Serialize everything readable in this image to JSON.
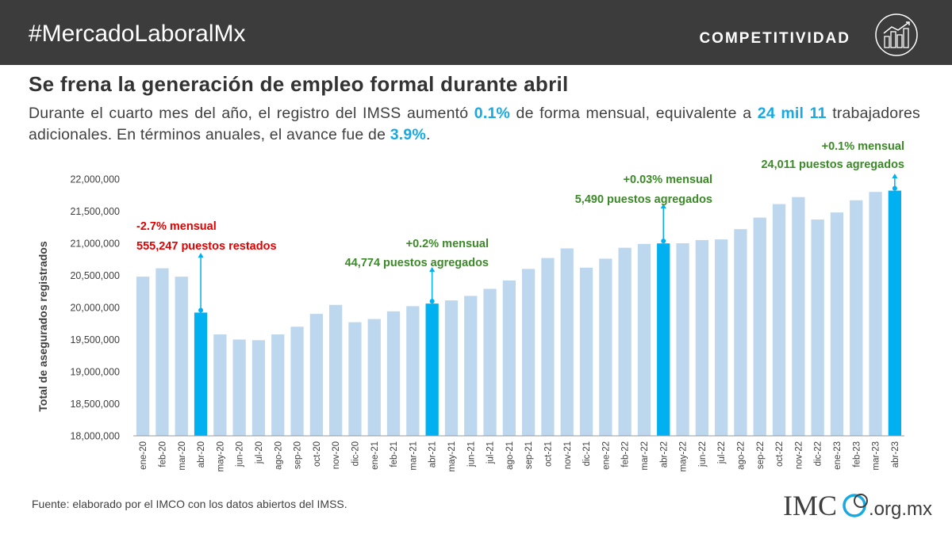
{
  "header": {
    "hashtag": "#MercadoLaboralMx",
    "brand": "COMPETITIVIDAD",
    "brand_icon": "city-chart-icon"
  },
  "title": "Se frena la generación de empleo formal durante abril",
  "subtitle": {
    "p1": "Durante el cuarto mes del año, el registro del IMSS aumentó ",
    "h1": "0.1%",
    "p2": " de forma mensual, equivalente a ",
    "h2": "24 mil 11",
    "p3": " trabajadores adicionales. En términos anuales, el avance fue de ",
    "h3": "3.9%",
    "p4": "."
  },
  "source": "Fuente: elaborado por el IMCO con los datos abiertos del IMSS.",
  "logo": {
    "imco": "IMC",
    "domain": ".org.mx"
  },
  "colors": {
    "bar": "#bdd7ee",
    "highlight": "#00b0f0",
    "red": "#e00000",
    "green": "#3b8a27",
    "header": "#3c3c3c"
  },
  "chart_data": {
    "type": "bar",
    "ylabel": "Total de asegurados registrados",
    "ylim": [
      18000000,
      22000000
    ],
    "yticks": [
      18000000,
      18500000,
      19000000,
      19500000,
      20000000,
      20500000,
      21000000,
      21500000,
      22000000
    ],
    "ytick_labels": [
      "18,000,000",
      "18,500,000",
      "19,000,000",
      "19,500,000",
      "20,000,000",
      "20,500,000",
      "21,000,000",
      "21,500,000",
      "22,000,000"
    ],
    "grid": false,
    "categories": [
      "ene-20",
      "feb-20",
      "mar-20",
      "abr-20",
      "may-20",
      "jun-20",
      "jul-20",
      "ago-20",
      "sep-20",
      "oct-20",
      "nov-20",
      "dic-20",
      "ene-21",
      "feb-21",
      "mar-21",
      "abr-21",
      "may-21",
      "jun-21",
      "jul-21",
      "ago-21",
      "sep-21",
      "oct-21",
      "nov-21",
      "dic-21",
      "ene-22",
      "feb-22",
      "mar-22",
      "abr-22",
      "may-22",
      "jun-22",
      "jul-22",
      "ago-22",
      "sep-22",
      "oct-22",
      "nov-22",
      "dic-22",
      "ene-23",
      "feb-23",
      "mar-23",
      "abr-23"
    ],
    "values": [
      20480000,
      20610000,
      20480000,
      19920000,
      19580000,
      19500000,
      19490000,
      19580000,
      19700000,
      19900000,
      20040000,
      19770000,
      19820000,
      19940000,
      20020000,
      20060000,
      20110000,
      20180000,
      20290000,
      20420000,
      20600000,
      20770000,
      20920000,
      20620000,
      20760000,
      20930000,
      20990000,
      20998000,
      21000000,
      21050000,
      21060000,
      21220000,
      21400000,
      21610000,
      21720000,
      21370000,
      21480000,
      21670000,
      21800000,
      21820000
    ],
    "highlighted": [
      "abr-20",
      "abr-21",
      "abr-22",
      "abr-23"
    ],
    "annotations": [
      {
        "category": "abr-20",
        "line1": "-2.7% mensual",
        "line2": "555,247 puestos restados",
        "color": "red"
      },
      {
        "category": "abr-21",
        "line1": "+0.2% mensual",
        "line2": "44,774 puestos agregados",
        "color": "green"
      },
      {
        "category": "abr-22",
        "line1": "+0.03% mensual",
        "line2": "5,490 puestos agregados",
        "color": "green"
      },
      {
        "category": "abr-23",
        "line1": "+0.1% mensual",
        "line2": "24,011 puestos agregados",
        "color": "green"
      }
    ]
  }
}
